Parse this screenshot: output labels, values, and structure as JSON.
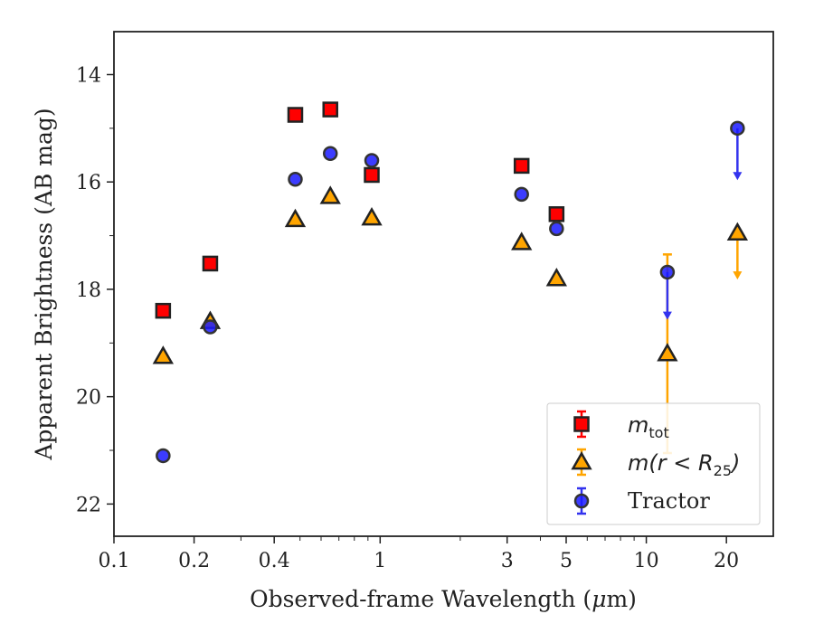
{
  "chart_data": {
    "type": "scatter",
    "xscale": "log",
    "xlabel": "Observed-frame Wavelength (μm)",
    "xlabel_parts": [
      "Observed-frame Wavelength (",
      "μ",
      "m)"
    ],
    "ylabel": "Apparent Brightness (AB mag)",
    "xlim": [
      0.1,
      30
    ],
    "ylim": [
      22.6,
      13.2
    ],
    "y_inverted": true,
    "xticks": [
      0.1,
      0.2,
      0.4,
      1,
      3,
      5,
      10,
      20
    ],
    "xtick_labels": [
      "0.1",
      "0.2",
      "0.4",
      "1",
      "3",
      "5",
      "10",
      "20"
    ],
    "yticks": [
      14,
      16,
      18,
      20,
      22
    ],
    "ytick_labels": [
      "14",
      "16",
      "18",
      "20",
      "22"
    ],
    "legend_position": "lower-right",
    "series": [
      {
        "name": "m_tot",
        "legend_label": {
          "base": "m",
          "sub": "tot"
        },
        "marker": "square",
        "color": "#ff0000",
        "edge": "#222222",
        "points": [
          {
            "x": 0.153,
            "y": 18.4
          },
          {
            "x": 0.23,
            "y": 17.52
          },
          {
            "x": 0.48,
            "y": 14.75
          },
          {
            "x": 0.65,
            "y": 14.65
          },
          {
            "x": 0.93,
            "y": 15.87
          },
          {
            "x": 3.4,
            "y": 15.7
          },
          {
            "x": 4.6,
            "y": 16.6
          }
        ]
      },
      {
        "name": "m(r<R25)",
        "legend_label": {
          "pre": "m(r < R",
          "sub": "25",
          "post": ")"
        },
        "marker": "triangle",
        "color": "#ffa500",
        "edge": "#222222",
        "points": [
          {
            "x": 0.153,
            "y": 19.25
          },
          {
            "x": 0.23,
            "y": 18.6
          },
          {
            "x": 0.48,
            "y": 16.7
          },
          {
            "x": 0.65,
            "y": 16.27
          },
          {
            "x": 0.93,
            "y": 16.67
          },
          {
            "x": 3.4,
            "y": 17.13
          },
          {
            "x": 4.6,
            "y": 17.8
          },
          {
            "x": 12.0,
            "y": 19.2,
            "yerr_low": 17.35,
            "yerr_high": 21.05
          },
          {
            "x": 22.0,
            "y": 16.95,
            "upper_limit": true,
            "arrow_to": 17.8
          }
        ]
      },
      {
        "name": "Tractor",
        "legend_label": {
          "text": "Tractor"
        },
        "marker": "circle",
        "color": "#1a1aff",
        "edge": "#333333",
        "points": [
          {
            "x": 0.153,
            "y": 21.1
          },
          {
            "x": 0.23,
            "y": 18.7
          },
          {
            "x": 0.48,
            "y": 15.95
          },
          {
            "x": 0.65,
            "y": 15.47
          },
          {
            "x": 0.93,
            "y": 15.6
          },
          {
            "x": 3.4,
            "y": 16.23
          },
          {
            "x": 4.6,
            "y": 16.87
          },
          {
            "x": 12.0,
            "y": 17.68,
            "upper_limit": true,
            "arrow_to": 18.55
          },
          {
            "x": 22.0,
            "y": 15.0,
            "upper_limit": true,
            "arrow_to": 15.95
          }
        ]
      }
    ]
  }
}
